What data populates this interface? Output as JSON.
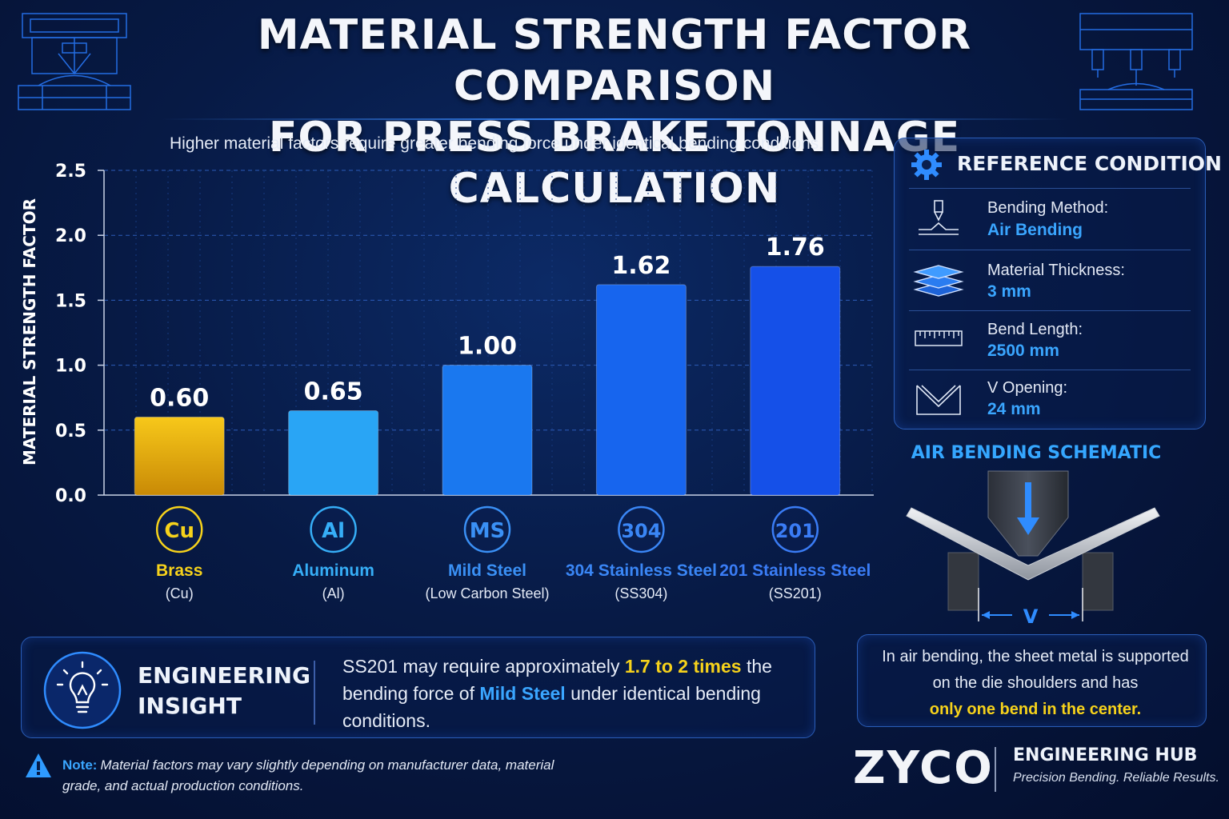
{
  "header": {
    "title_line1": "MATERIAL STRENGTH FACTOR COMPARISON",
    "title_line2": "FOR PRESS BRAKE TONNAGE CALCULATION",
    "subtitle": "Higher material factors require greater bending force under identical bending conditions."
  },
  "chart_data": {
    "type": "bar",
    "ylabel": "MATERIAL STRENGTH FACTOR",
    "ylim": [
      0,
      2.5
    ],
    "yticks": [
      "0.0",
      "0.5",
      "1.0",
      "1.5",
      "2.0",
      "2.5"
    ],
    "grid": true,
    "categories": [
      "Brass",
      "Aluminum",
      "Mild Steel",
      "304 Stainless Steel",
      "201 Stainless Steel"
    ],
    "values": [
      0.6,
      0.65,
      1.0,
      1.62,
      1.76
    ],
    "value_labels": [
      "0.60",
      "0.65",
      "1.00",
      "1.62",
      "1.76"
    ],
    "symbols": [
      "Cu",
      "Al",
      "MS",
      "304",
      "201"
    ],
    "sublabels": [
      "(Cu)",
      "(Al)",
      "(Low Carbon Steel)",
      "(SS304)",
      "(SS201)"
    ],
    "colors": [
      "#f1b90c",
      "#29a5f5",
      "#1a78ef",
      "#1765ee",
      "#1550e8"
    ],
    "label_colors": [
      "#f6d21b",
      "#36aef7",
      "#3a90f5",
      "#3a86f5",
      "#3a7cf5"
    ]
  },
  "reference": {
    "title": "REFERENCE CONDITION",
    "gear_icon": "gear-icon",
    "items": [
      {
        "icon": "bending-method-icon",
        "label": "Bending Method:",
        "value": "Air Bending"
      },
      {
        "icon": "layers-icon",
        "label": "Material Thickness:",
        "value": "3 mm"
      },
      {
        "icon": "ruler-icon",
        "label": "Bend Length:",
        "value": "2500 mm"
      },
      {
        "icon": "v-die-icon",
        "label": "V Opening:",
        "value": "24 mm"
      }
    ]
  },
  "schematic": {
    "title": "AIR BENDING SCHEMATIC",
    "v_label": "V",
    "desc_line1": "In air bending, the sheet metal is supported",
    "desc_line2": "on the die shoulders and has",
    "desc_line3": "only one bend in the center."
  },
  "insight": {
    "title_line1": "ENGINEERING",
    "title_line2": "INSIGHT",
    "text_part1": "SS201 may require approximately ",
    "text_highlight1": "1.7 to 2 times",
    "text_part2": " the bending force of ",
    "text_highlight2": "Mild Steel",
    "text_part3": " under identical bending conditions."
  },
  "note": {
    "label": "Note:",
    "text": "Material factors may vary slightly depending on manufacturer data, material grade, and actual production conditions."
  },
  "brand": {
    "name": "ZYCO",
    "hub": "ENGINEERING HUB",
    "tagline": "Precision Bending. Reliable Results."
  }
}
